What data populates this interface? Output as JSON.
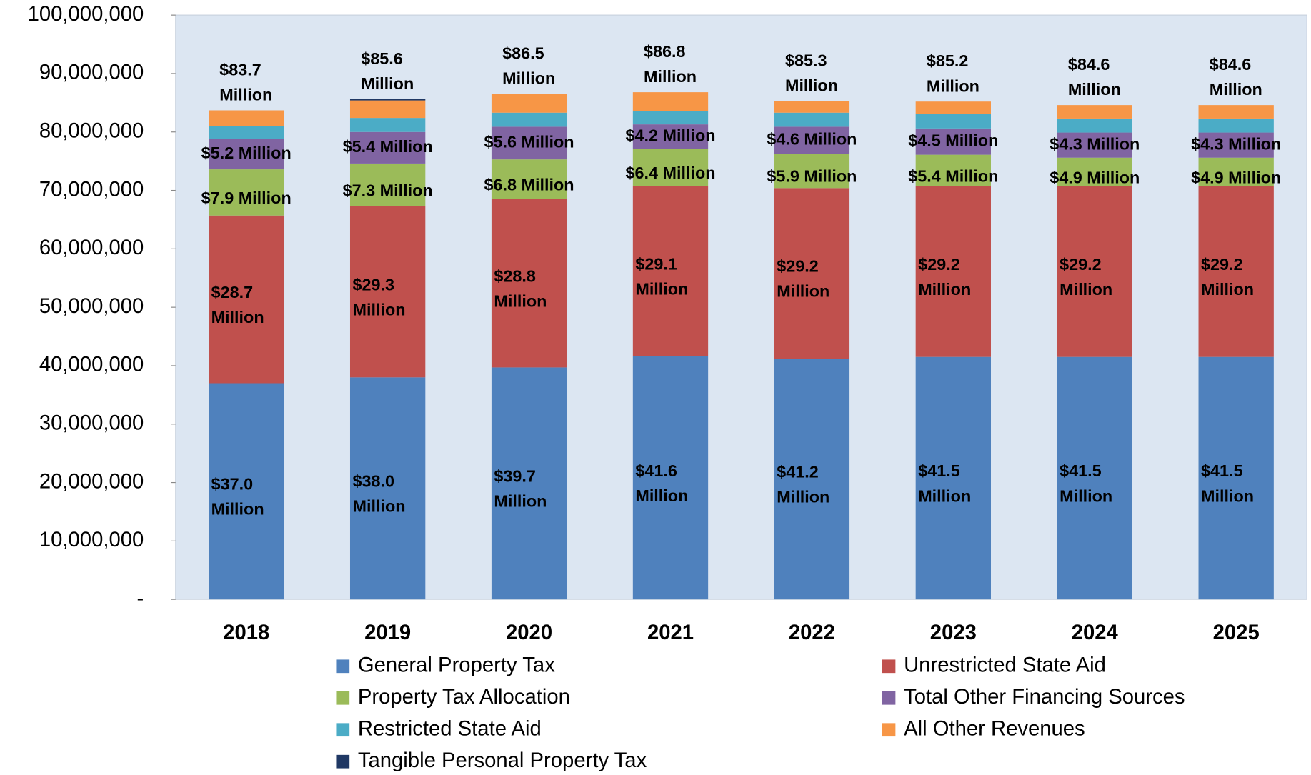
{
  "chart_data": {
    "type": "stacked_bar",
    "categories": [
      "2018",
      "2019",
      "2020",
      "2021",
      "2022",
      "2023",
      "2024",
      "2025"
    ],
    "series": [
      {
        "name": "General Property Tax",
        "color": "#4f81bd",
        "values": [
          37000000,
          38000000,
          39700000,
          41600000,
          41200000,
          41500000,
          41500000,
          41500000
        ],
        "value_labels": [
          "$37.0 Million",
          "$38.0 Million",
          "$39.7 Million",
          "$41.6 Million",
          "$41.2 Million",
          "$41.5 Million",
          "$41.5 Million",
          "$41.5 Million"
        ]
      },
      {
        "name": "Unrestricted State Aid",
        "color": "#c0504d",
        "values": [
          28700000,
          29300000,
          28800000,
          29100000,
          29200000,
          29200000,
          29200000,
          29200000
        ],
        "value_labels": [
          "$28.7 Million",
          "$29.3 Million",
          "$28.8 Million",
          "$29.1 Million",
          "$29.2 Million",
          "$29.2 Million",
          "$29.2 Million",
          "$29.2 Million"
        ]
      },
      {
        "name": "Property Tax Allocation",
        "color": "#9bbb59",
        "values": [
          7900000,
          7300000,
          6800000,
          6400000,
          5900000,
          5400000,
          4900000,
          4900000
        ],
        "value_labels": [
          "$7.9 Million",
          "$7.3 Million",
          "$6.8 Million",
          "$6.4 Million",
          "$5.9 Million",
          "$5.4 Million",
          "$4.9 Million",
          "$4.9 Million"
        ]
      },
      {
        "name": "Total Other Financing Sources",
        "color": "#8064a2",
        "values": [
          5200000,
          5400000,
          5600000,
          4200000,
          4600000,
          4500000,
          4300000,
          4300000
        ],
        "value_labels": [
          "$5.2 Million",
          "$5.4 Million",
          "$5.6 Million",
          "$4.2 Million",
          "$4.6 Million",
          "$4.5 Million",
          "$4.3 Million",
          "$4.3 Million"
        ]
      },
      {
        "name": "Restricted State Aid",
        "color": "#4bacc6",
        "values": [
          2200000,
          2400000,
          2400000,
          2300000,
          2400000,
          2500000,
          2400000,
          2400000
        ]
      },
      {
        "name": "All Other Revenues",
        "color": "#f79646",
        "values": [
          2700000,
          3000000,
          3200000,
          3200000,
          2000000,
          2100000,
          2300000,
          2300000
        ]
      },
      {
        "name": "Tangible Personal Property Tax",
        "color": "#1f3864",
        "values": [
          0,
          200000,
          0,
          0,
          0,
          0,
          0,
          0
        ]
      }
    ],
    "totals": [
      83700000,
      85600000,
      86500000,
      86800000,
      85300000,
      85200000,
      84600000,
      84600000
    ],
    "total_labels": [
      "$83.7 Million",
      "$85.6 Million",
      "$86.5 Million",
      "$86.8 Million",
      "$85.3 Million",
      "$85.2 Million",
      "$84.6 Million",
      "$84.6 Million"
    ],
    "ylim": [
      0,
      100000000
    ],
    "yticks": [
      {
        "value": 0,
        "label": "-"
      },
      {
        "value": 10000000,
        "label": "10,000,000"
      },
      {
        "value": 20000000,
        "label": "20,000,000"
      },
      {
        "value": 30000000,
        "label": "30,000,000"
      },
      {
        "value": 40000000,
        "label": "40,000,000"
      },
      {
        "value": 50000000,
        "label": "50,000,000"
      },
      {
        "value": 60000000,
        "label": "60,000,000"
      },
      {
        "value": 70000000,
        "label": "70,000,000"
      },
      {
        "value": 80000000,
        "label": "80,000,000"
      },
      {
        "value": 90000000,
        "label": "90,000,000"
      },
      {
        "value": 100000000,
        "label": "100,000,000"
      }
    ],
    "grid": false
  }
}
